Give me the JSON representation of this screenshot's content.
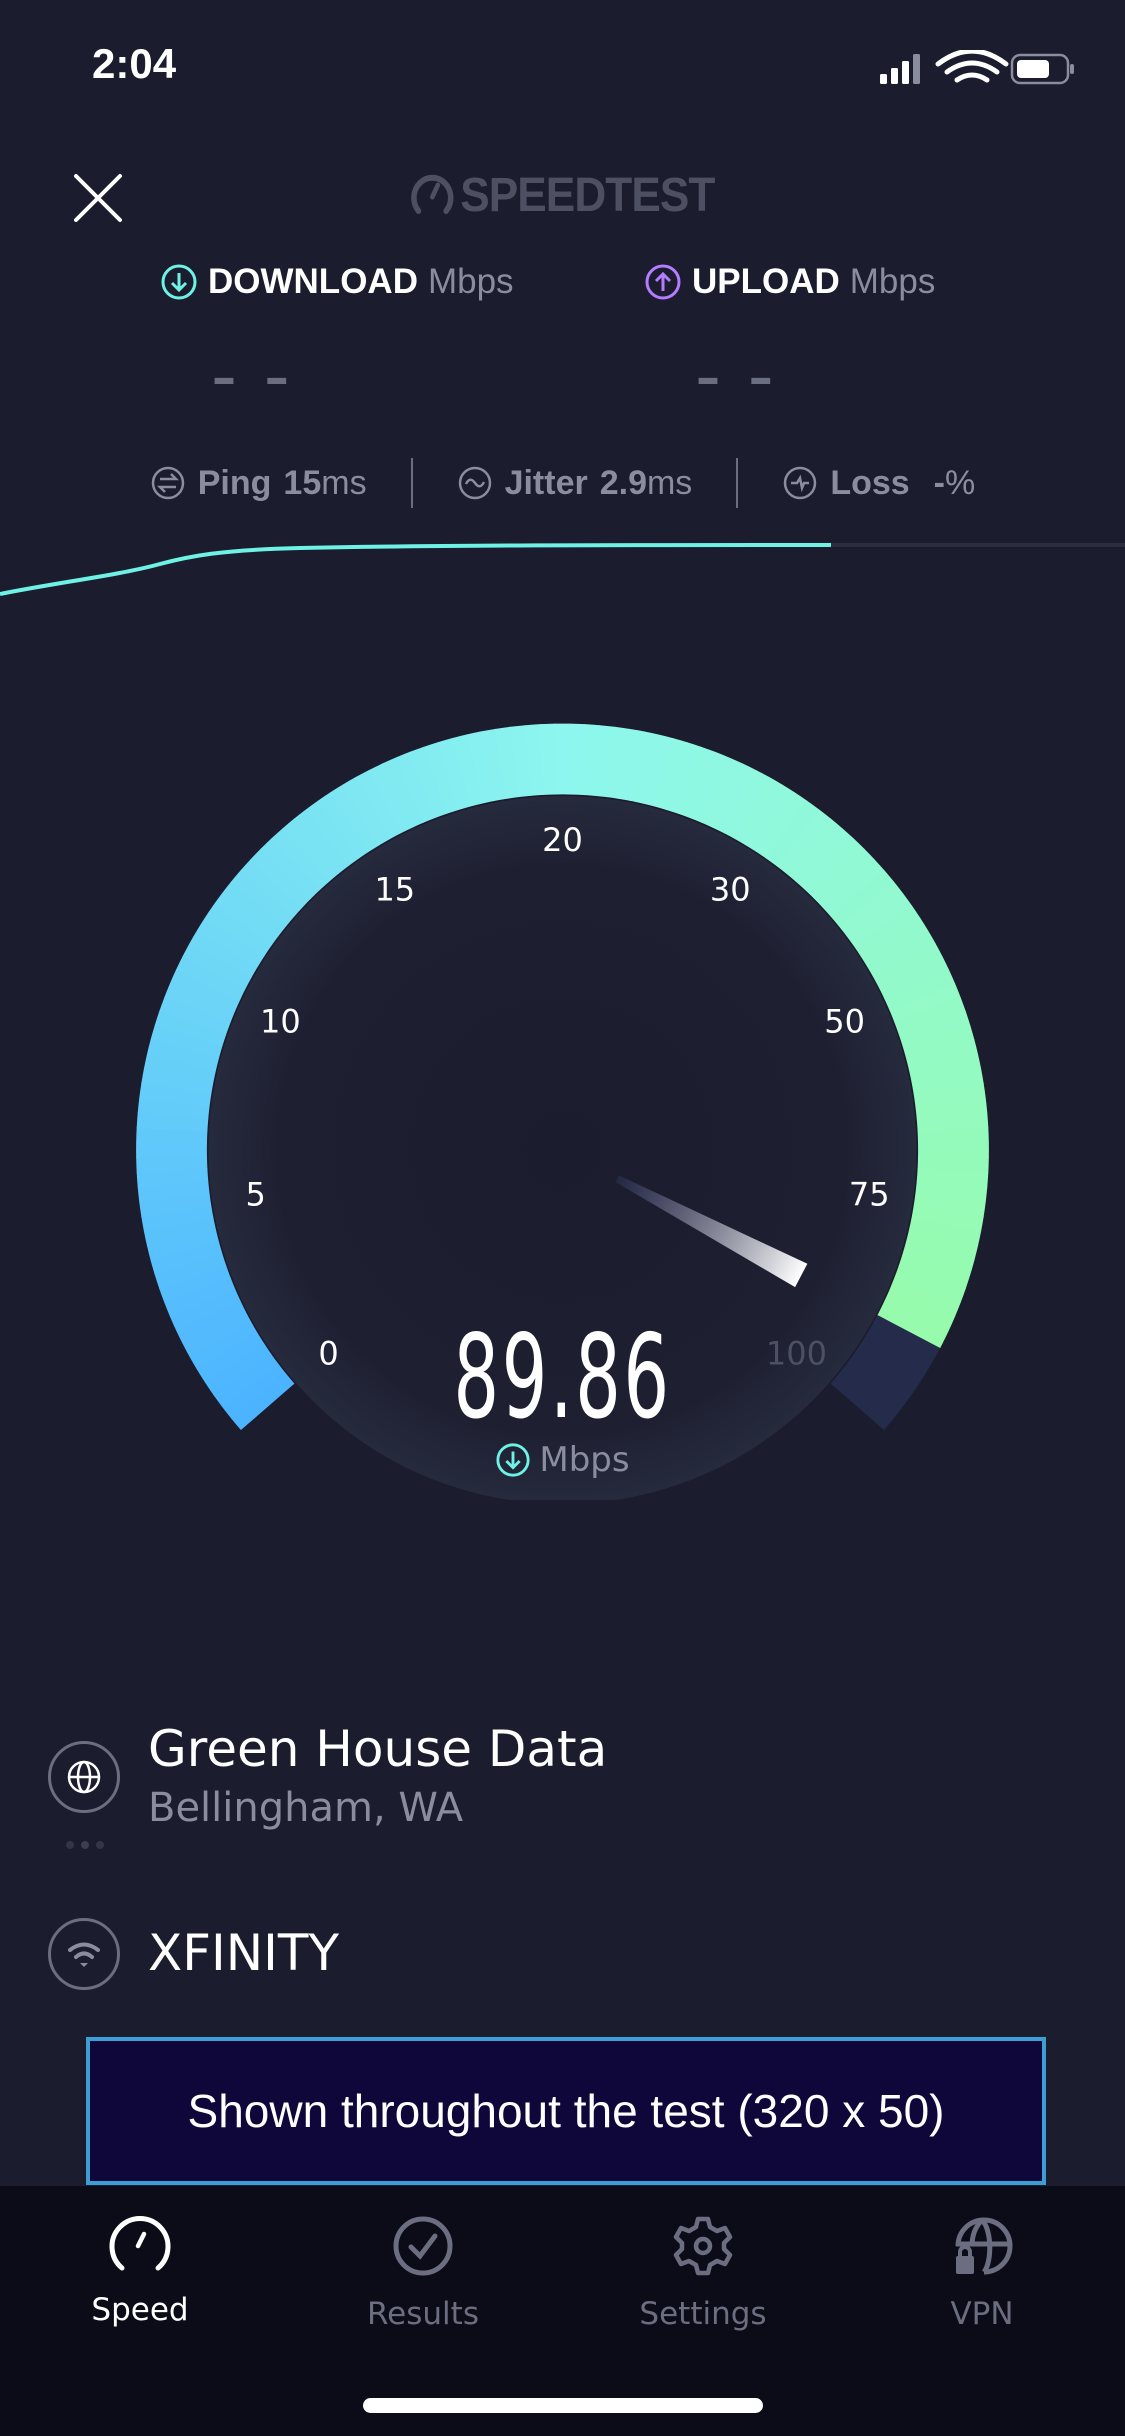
{
  "status_bar": {
    "time": "2:04",
    "signal_icon": "cellular-signal-icon",
    "wifi_icon": "wifi-icon",
    "battery_icon": "battery-icon"
  },
  "header": {
    "logo_text": "SPEEDTEST",
    "close_icon": "close-icon"
  },
  "results": {
    "download": {
      "label": "DOWNLOAD",
      "unit": "Mbps",
      "value": "– –",
      "color": "#6ff2e6"
    },
    "upload": {
      "label": "UPLOAD",
      "unit": "Mbps",
      "value": "– –",
      "color": "#b47cff"
    }
  },
  "metrics": {
    "ping": {
      "label": "Ping",
      "value": "15",
      "unit": "ms"
    },
    "jitter": {
      "label": "Jitter",
      "value": "2.9",
      "unit": "ms"
    },
    "loss": {
      "label": "Loss",
      "value": "-",
      "unit": "%"
    }
  },
  "gauge": {
    "ticks": [
      "0",
      "5",
      "10",
      "15",
      "20",
      "30",
      "50",
      "75",
      "100"
    ],
    "current_value": "89.86",
    "current_numeric": 89.86,
    "unit": "Mbps",
    "colors": {
      "start": "#4cb4ff",
      "mid": "#8ef7ee",
      "end": "#97fca3",
      "remaining": "#252b4a"
    }
  },
  "server": {
    "name": "Green House Data",
    "location": "Bellingham, WA"
  },
  "isp": {
    "name": "XFINITY"
  },
  "ad": {
    "text": "Shown throughout the test (320 x 50)"
  },
  "tabs": [
    {
      "label": "Speed",
      "icon": "speedometer-icon",
      "active": true
    },
    {
      "label": "Results",
      "icon": "checkmark-circle-icon",
      "active": false
    },
    {
      "label": "Settings",
      "icon": "gear-icon",
      "active": false
    },
    {
      "label": "VPN",
      "icon": "globe-lock-icon",
      "active": false
    }
  ]
}
